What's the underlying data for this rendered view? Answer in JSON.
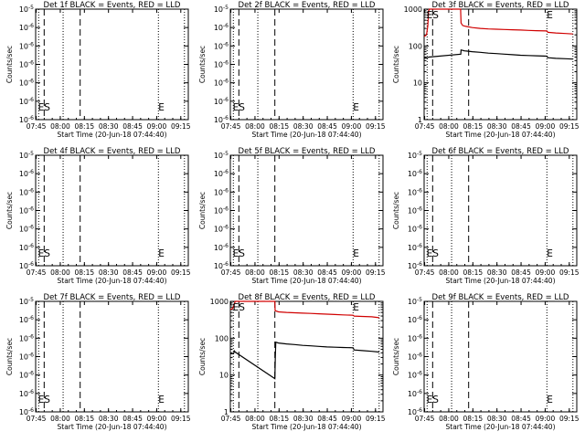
{
  "chart_data": [
    {
      "type": "line",
      "title": "Det 1f BLACK = Events, RED = LLD",
      "xlabel": "Start Time (20-Jun-18 07:44:40)",
      "ylabel": "Counts/sec",
      "x_ticks": [
        "07:45",
        "08:00",
        "08:15",
        "08:30",
        "08:45",
        "09:00",
        "09:15"
      ],
      "x_tick_minutes": [
        0.33,
        15.33,
        30.33,
        45.33,
        60.33,
        75.33,
        90.33
      ],
      "xlim_minutes": [
        0,
        95
      ],
      "y_scale": "log",
      "ylim": [
        1e-06,
        1e-05
      ],
      "y_ticks": [
        "10^-6",
        "10^-6",
        "10^-6",
        "10^-6",
        "10^-6",
        "10^-6",
        "10^-5"
      ],
      "dotted_lines_minutes": [
        1.87,
        17.1,
        76.4,
        92.6
      ],
      "dashed_lines_minutes": [
        5.3,
        27.7
      ],
      "annotations": [
        {
          "text": "ES",
          "x_minutes": 1.5
        },
        {
          "text": "E",
          "x_minutes": 76.4
        }
      ],
      "series": []
    },
    {
      "type": "line",
      "title": "Det 2f BLACK = Events, RED = LLD",
      "xlabel": "Start Time (20-Jun-18 07:44:40)",
      "ylabel": "Counts/sec",
      "x_ticks": [
        "07:45",
        "08:00",
        "08:15",
        "08:30",
        "08:45",
        "09:00",
        "09:15"
      ],
      "x_tick_minutes": [
        0.33,
        15.33,
        30.33,
        45.33,
        60.33,
        75.33,
        90.33
      ],
      "xlim_minutes": [
        0,
        95
      ],
      "y_scale": "log",
      "ylim": [
        1e-06,
        1e-05
      ],
      "y_ticks": [
        "10^-6",
        "10^-6",
        "10^-6",
        "10^-6",
        "10^-6",
        "10^-6",
        "10^-5"
      ],
      "dotted_lines_minutes": [
        1.87,
        17.1,
        76.4,
        92.6
      ],
      "dashed_lines_minutes": [
        5.3,
        27.7
      ],
      "annotations": [
        {
          "text": "ES",
          "x_minutes": 1.5
        },
        {
          "text": "E",
          "x_minutes": 76.4
        }
      ],
      "series": []
    },
    {
      "type": "line",
      "title": "Det 3f BLACK = Events, RED = LLD",
      "xlabel": "Start Time (20-Jun-18 07:44:40)",
      "ylabel": "Counts/sec",
      "x_ticks": [
        "07:45",
        "08:00",
        "08:15",
        "08:30",
        "08:45",
        "09:00",
        "09:15"
      ],
      "x_tick_minutes": [
        0.33,
        15.33,
        30.33,
        45.33,
        60.33,
        75.33,
        90.33
      ],
      "xlim_minutes": [
        0,
        95
      ],
      "y_scale": "log",
      "ylim": [
        1,
        1000
      ],
      "y_ticks": [
        "1",
        "10",
        "100",
        "1000"
      ],
      "dotted_lines_minutes": [
        1.87,
        17.1,
        76.4,
        92.6
      ],
      "dashed_lines_minutes": [
        5.3,
        27.7
      ],
      "annotations": [
        {
          "text": "ES",
          "x_minutes": 1.5
        },
        {
          "text": "E",
          "x_minutes": 76.4
        }
      ],
      "series": [
        {
          "color": "#d00000",
          "points": [
            [
              0,
              180
            ],
            [
              1.5,
              200
            ],
            [
              2.3,
              350
            ],
            [
              2.8,
              900
            ],
            [
              3.3,
              1000
            ],
            [
              22.7,
              1000
            ],
            [
              22.8,
              700
            ],
            [
              23,
              420
            ],
            [
              24,
              360
            ],
            [
              26,
              340
            ],
            [
              30,
              315
            ],
            [
              35,
              300
            ],
            [
              40,
              290
            ],
            [
              45,
              285
            ],
            [
              50,
              280
            ],
            [
              55,
              275
            ],
            [
              60,
              270
            ],
            [
              65,
              265
            ],
            [
              70,
              260
            ],
            [
              76.4,
              255
            ],
            [
              77,
              235
            ],
            [
              82,
              225
            ],
            [
              88,
              218
            ],
            [
              92.6,
              212
            ]
          ]
        },
        {
          "color": "#000000",
          "points": [
            [
              0,
              46
            ],
            [
              2,
              48
            ],
            [
              3,
              50
            ],
            [
              22.8,
              60
            ],
            [
              23,
              78
            ],
            [
              25,
              74
            ],
            [
              30,
              70
            ],
            [
              35,
              67
            ],
            [
              40,
              64
            ],
            [
              45,
              62
            ],
            [
              50,
              60
            ],
            [
              55,
              58
            ],
            [
              60,
              56
            ],
            [
              65,
              55
            ],
            [
              70,
              54
            ],
            [
              76.4,
              53
            ],
            [
              77,
              48
            ],
            [
              82,
              46
            ],
            [
              88,
              45
            ],
            [
              92.6,
              44
            ]
          ]
        }
      ]
    },
    {
      "type": "line",
      "title": "Det 4f BLACK = Events, RED = LLD",
      "xlabel": "Start Time (20-Jun-18 07:44:40)",
      "ylabel": "Counts/sec",
      "x_ticks": [
        "07:45",
        "08:00",
        "08:15",
        "08:30",
        "08:45",
        "09:00",
        "09:15"
      ],
      "x_tick_minutes": [
        0.33,
        15.33,
        30.33,
        45.33,
        60.33,
        75.33,
        90.33
      ],
      "xlim_minutes": [
        0,
        95
      ],
      "y_scale": "log",
      "ylim": [
        1e-06,
        1e-05
      ],
      "y_ticks": [
        "10^-6",
        "10^-6",
        "10^-6",
        "10^-6",
        "10^-6",
        "10^-6",
        "10^-5"
      ],
      "dotted_lines_minutes": [
        1.87,
        17.1,
        76.4,
        92.6
      ],
      "dashed_lines_minutes": [
        5.3,
        27.7
      ],
      "annotations": [
        {
          "text": "ES",
          "x_minutes": 1.5
        },
        {
          "text": "E",
          "x_minutes": 76.4
        }
      ],
      "series": []
    },
    {
      "type": "line",
      "title": "Det 5f BLACK = Events, RED = LLD",
      "xlabel": "Start Time (20-Jun-18 07:44:40)",
      "ylabel": "Counts/sec",
      "x_ticks": [
        "07:45",
        "08:00",
        "08:15",
        "08:30",
        "08:45",
        "09:00",
        "09:15"
      ],
      "x_tick_minutes": [
        0.33,
        15.33,
        30.33,
        45.33,
        60.33,
        75.33,
        90.33
      ],
      "xlim_minutes": [
        0,
        95
      ],
      "y_scale": "log",
      "ylim": [
        1e-06,
        1e-05
      ],
      "y_ticks": [
        "10^-6",
        "10^-6",
        "10^-6",
        "10^-6",
        "10^-6",
        "10^-6",
        "10^-5"
      ],
      "dotted_lines_minutes": [
        1.87,
        17.1,
        76.4,
        92.6
      ],
      "dashed_lines_minutes": [
        5.3,
        27.7
      ],
      "annotations": [
        {
          "text": "ES",
          "x_minutes": 1.5
        },
        {
          "text": "E",
          "x_minutes": 76.4
        }
      ],
      "series": []
    },
    {
      "type": "line",
      "title": "Det 6f BLACK = Events, RED = LLD",
      "xlabel": "Start Time (20-Jun-18 07:44:40)",
      "ylabel": "Counts/sec",
      "x_ticks": [
        "07:45",
        "08:00",
        "08:15",
        "08:30",
        "08:45",
        "09:00",
        "09:15"
      ],
      "x_tick_minutes": [
        0.33,
        15.33,
        30.33,
        45.33,
        60.33,
        75.33,
        90.33
      ],
      "xlim_minutes": [
        0,
        95
      ],
      "y_scale": "log",
      "ylim": [
        1e-06,
        1e-05
      ],
      "y_ticks": [
        "10^-6",
        "10^-6",
        "10^-6",
        "10^-6",
        "10^-6",
        "10^-6",
        "10^-5"
      ],
      "dotted_lines_minutes": [
        1.87,
        17.1,
        76.4,
        92.6
      ],
      "dashed_lines_minutes": [
        5.3,
        27.7
      ],
      "annotations": [
        {
          "text": "ES",
          "x_minutes": 1.5
        },
        {
          "text": "E",
          "x_minutes": 76.4
        }
      ],
      "series": []
    },
    {
      "type": "line",
      "title": "Det 7f BLACK = Events, RED = LLD",
      "xlabel": "Start Time (20-Jun-18 07:44:40)",
      "ylabel": "Counts/sec",
      "x_ticks": [
        "07:45",
        "08:00",
        "08:15",
        "08:30",
        "08:45",
        "09:00",
        "09:15"
      ],
      "x_tick_minutes": [
        0.33,
        15.33,
        30.33,
        45.33,
        60.33,
        75.33,
        90.33
      ],
      "xlim_minutes": [
        0,
        95
      ],
      "y_scale": "log",
      "ylim": [
        1e-06,
        1e-05
      ],
      "y_ticks": [
        "10^-6",
        "10^-6",
        "10^-6",
        "10^-6",
        "10^-6",
        "10^-6",
        "10^-5"
      ],
      "dotted_lines_minutes": [
        1.87,
        17.1,
        76.4,
        92.6
      ],
      "dashed_lines_minutes": [
        5.3,
        27.7
      ],
      "annotations": [
        {
          "text": "ES",
          "x_minutes": 1.5
        },
        {
          "text": "E",
          "x_minutes": 76.4
        }
      ],
      "series": []
    },
    {
      "type": "line",
      "title": "Det 8f BLACK = Events, RED = LLD",
      "xlabel": "Start Time (20-Jun-18 07:44:40)",
      "ylabel": "Counts/sec",
      "x_ticks": [
        "07:45",
        "08:00",
        "08:15",
        "08:30",
        "08:45",
        "09:00",
        "09:15"
      ],
      "x_tick_minutes": [
        0.33,
        15.33,
        30.33,
        45.33,
        60.33,
        75.33,
        90.33
      ],
      "xlim_minutes": [
        0,
        95
      ],
      "y_scale": "log",
      "ylim": [
        1,
        1000
      ],
      "y_ticks": [
        "1",
        "10",
        "100",
        "1000"
      ],
      "dotted_lines_minutes": [
        1.87,
        17.1,
        76.4,
        92.6
      ],
      "dashed_lines_minutes": [
        5.3,
        27.7
      ],
      "annotations": [
        {
          "text": "ES",
          "x_minutes": 1.5
        },
        {
          "text": "E",
          "x_minutes": 76.4
        }
      ],
      "series": [
        {
          "color": "#d00000",
          "points": [
            [
              0,
              600
            ],
            [
              1.5,
              640
            ],
            [
              2.3,
              800
            ],
            [
              3,
              1000
            ],
            [
              27.7,
              1000
            ],
            [
              27.9,
              560
            ],
            [
              30,
              520
            ],
            [
              35,
              500
            ],
            [
              40,
              490
            ],
            [
              45,
              480
            ],
            [
              50,
              470
            ],
            [
              55,
              460
            ],
            [
              60,
              450
            ],
            [
              65,
              440
            ],
            [
              70,
              430
            ],
            [
              76.4,
              420
            ],
            [
              77,
              400
            ],
            [
              82,
              390
            ],
            [
              88,
              380
            ],
            [
              92.6,
              360
            ]
          ]
        },
        {
          "color": "#000000",
          "points": [
            [
              0,
              38
            ],
            [
              2,
              38
            ],
            [
              2.5,
              45
            ],
            [
              3,
              42
            ],
            [
              27.7,
              8
            ],
            [
              28,
              30
            ],
            [
              28.3,
              78
            ],
            [
              30,
              74
            ],
            [
              35,
              70
            ],
            [
              40,
              67
            ],
            [
              45,
              64
            ],
            [
              50,
              62
            ],
            [
              55,
              60
            ],
            [
              60,
              58
            ],
            [
              65,
              57
            ],
            [
              70,
              56
            ],
            [
              76.4,
              55
            ],
            [
              77,
              48
            ],
            [
              82,
              46
            ],
            [
              88,
              44
            ],
            [
              92.6,
              42
            ]
          ]
        }
      ]
    },
    {
      "type": "line",
      "title": "Det 9f BLACK = Events, RED = LLD",
      "xlabel": "Start Time (20-Jun-18 07:44:40)",
      "ylabel": "Counts/sec",
      "x_ticks": [
        "07:45",
        "08:00",
        "08:15",
        "08:30",
        "08:45",
        "09:00",
        "09:15"
      ],
      "x_tick_minutes": [
        0.33,
        15.33,
        30.33,
        45.33,
        60.33,
        75.33,
        90.33
      ],
      "xlim_minutes": [
        0,
        95
      ],
      "y_scale": "log",
      "ylim": [
        1e-06,
        1e-05
      ],
      "y_ticks": [
        "10^-6",
        "10^-6",
        "10^-6",
        "10^-6",
        "10^-6",
        "10^-6",
        "10^-5"
      ],
      "dotted_lines_minutes": [
        1.87,
        17.1,
        76.4,
        92.6
      ],
      "dashed_lines_minutes": [
        5.3,
        27.7
      ],
      "annotations": [
        {
          "text": "ES",
          "x_minutes": 1.5
        },
        {
          "text": "E",
          "x_minutes": 76.4
        }
      ],
      "series": []
    }
  ]
}
